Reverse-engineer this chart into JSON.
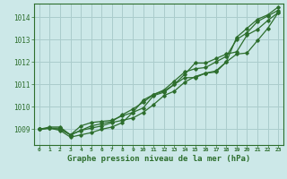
{
  "title": "Graphe pression niveau de la mer (hPa)",
  "bg_color": "#cce8e8",
  "grid_color": "#aacccc",
  "line_color": "#2d6e2d",
  "axis_label_color": "#2d6e2d",
  "x_ticks": [
    0,
    1,
    2,
    3,
    4,
    5,
    6,
    7,
    8,
    9,
    10,
    11,
    12,
    13,
    14,
    15,
    16,
    17,
    18,
    19,
    20,
    21,
    22,
    23
  ],
  "y_ticks": [
    1009,
    1010,
    1011,
    1012,
    1013,
    1014
  ],
  "ylim": [
    1008.3,
    1014.6
  ],
  "xlim": [
    -0.5,
    23.5
  ],
  "series": [
    [
      1009.0,
      1009.1,
      1009.1,
      1008.75,
      1009.15,
      1009.3,
      1009.35,
      1009.4,
      1009.6,
      1009.75,
      1010.3,
      1010.55,
      1010.7,
      1011.0,
      1011.3,
      1011.3,
      1011.5,
      1011.55,
      1012.0,
      1013.1,
      1013.5,
      1013.9,
      1014.1,
      1014.45
    ],
    [
      1009.0,
      1009.05,
      1009.05,
      1008.75,
      1008.95,
      1009.05,
      1009.15,
      1009.3,
      1009.4,
      1009.5,
      1009.75,
      1010.1,
      1010.5,
      1010.7,
      1011.1,
      1011.35,
      1011.5,
      1011.6,
      1012.0,
      1012.35,
      1012.4,
      1012.95,
      1013.5,
      1014.2
    ],
    [
      1009.0,
      1009.05,
      1008.95,
      1008.65,
      1008.75,
      1008.85,
      1009.0,
      1009.1,
      1009.3,
      1009.75,
      1009.95,
      1010.5,
      1010.65,
      1011.0,
      1011.45,
      1011.95,
      1011.95,
      1012.15,
      1012.35,
      1012.45,
      1013.2,
      1013.45,
      1013.85,
      1014.2
    ],
    [
      1009.0,
      1009.05,
      1009.0,
      1008.75,
      1008.95,
      1009.15,
      1009.25,
      1009.35,
      1009.65,
      1009.9,
      1010.2,
      1010.55,
      1010.75,
      1011.15,
      1011.55,
      1011.7,
      1011.75,
      1012.0,
      1012.25,
      1013.0,
      1013.3,
      1013.8,
      1014.05,
      1014.3
    ]
  ]
}
